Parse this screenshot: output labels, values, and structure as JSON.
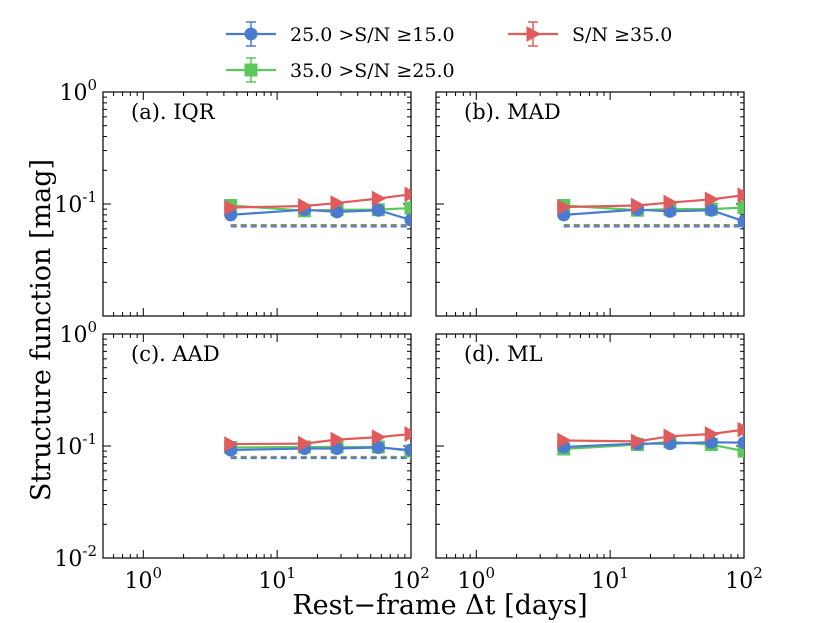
{
  "chart_data": {
    "type": "line",
    "xlabel": "Rest−frame Δt [days]",
    "ylabel": "Structure function [mag]",
    "xscale": "log",
    "yscale": "log",
    "xlim": [
      0.5,
      100
    ],
    "ylim": [
      0.01,
      1
    ],
    "grid": false,
    "legend_position": "top",
    "x_tick_labels": [
      {
        "value": 1,
        "base": "10",
        "exp": "0"
      },
      {
        "value": 10,
        "base": "10",
        "exp": "1"
      },
      {
        "value": 100,
        "base": "10",
        "exp": "2"
      }
    ],
    "y_tick_labels": [
      {
        "value": 1,
        "base": "10",
        "exp": "0"
      },
      {
        "value": 0.1,
        "base": "10",
        "exp": "-1"
      },
      {
        "value": 0.01,
        "base": "10",
        "exp": "-2"
      }
    ],
    "series_styles": [
      {
        "color": "#4a7bd0",
        "marker": "circle"
      },
      {
        "color": "#5cc85c",
        "marker": "square"
      },
      {
        "color": "#e05c5c",
        "marker": "triangle-right"
      }
    ],
    "legend": [
      {
        "label": "25.0 >S/N ≥15.0",
        "series": 0
      },
      {
        "label": "S/N ≥35.0",
        "series": 2
      },
      {
        "label": "35.0 >S/N ≥25.0",
        "series": 1
      }
    ],
    "panels": [
      {
        "label": "(a). IQR",
        "x": [
          4.5,
          16,
          28,
          57,
          100
        ],
        "series": [
          {
            "values": [
              0.08,
              0.089,
              0.085,
              0.088,
              0.072
            ]
          },
          {
            "values": [
              0.097,
              0.087,
              0.089,
              0.089,
              0.092
            ]
          },
          {
            "values": [
              0.093,
              0.096,
              0.102,
              0.112,
              0.122
            ]
          }
        ],
        "baselines": [
          {
            "series": 2,
            "value": 0.065
          },
          {
            "series": 1,
            "value": 0.064
          },
          {
            "series": 0,
            "value": 0.063
          }
        ]
      },
      {
        "label": "(b). MAD",
        "x": [
          4.5,
          16,
          28,
          57,
          100
        ],
        "series": [
          {
            "values": [
              0.08,
              0.089,
              0.086,
              0.088,
              0.07
            ]
          },
          {
            "values": [
              0.097,
              0.088,
              0.09,
              0.09,
              0.093
            ]
          },
          {
            "values": [
              0.094,
              0.097,
              0.103,
              0.11,
              0.12
            ]
          }
        ],
        "baselines": [
          {
            "series": 2,
            "value": 0.065
          },
          {
            "series": 1,
            "value": 0.064
          },
          {
            "series": 0,
            "value": 0.063
          }
        ]
      },
      {
        "label": "(c). AAD",
        "x": [
          4.5,
          16,
          28,
          57,
          100
        ],
        "series": [
          {
            "values": [
              0.092,
              0.095,
              0.095,
              0.097,
              0.092
            ]
          },
          {
            "values": [
              0.097,
              0.098,
              0.098,
              0.098,
              0.09
            ]
          },
          {
            "values": [
              0.104,
              0.105,
              0.114,
              0.12,
              0.128
            ]
          }
        ],
        "baselines": [
          {
            "series": 2,
            "value": 0.08
          },
          {
            "series": 1,
            "value": 0.079
          },
          {
            "series": 0,
            "value": 0.078
          }
        ]
      },
      {
        "label": "(d). ML",
        "x": [
          4.5,
          16,
          28,
          57,
          100
        ],
        "series": [
          {
            "values": [
              0.098,
              0.105,
              0.105,
              0.108,
              0.107
            ]
          },
          {
            "values": [
              0.094,
              0.103,
              0.109,
              0.103,
              0.09
            ]
          },
          {
            "values": [
              0.112,
              0.11,
              0.122,
              0.128,
              0.14
            ]
          }
        ],
        "baselines": []
      }
    ]
  }
}
